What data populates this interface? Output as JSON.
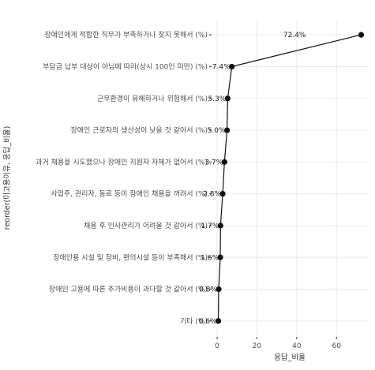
{
  "chart_data": {
    "type": "line",
    "orientation": "horizontal",
    "xlabel": "응답_비율",
    "ylabel": "reorder(미고용이유, 응답_비율)",
    "xlim": [
      0,
      73
    ],
    "xticks": [
      0,
      20,
      40,
      60
    ],
    "grid": true,
    "categories": [
      "장애인에게 적합한 직무가 부족하거나 찾지 못해서 (%)",
      "부담금 납부 대상이 아님에 따라(상시 100인 미만) (%)",
      "근무환경이 유해하거나 위험해서 (%)",
      "장애인 근로자의 생산성이 낮을 것 같아서 (%)",
      "과거 채용을 시도했으나 장애인 지원자 자체가 없어서 (%)",
      "사업주, 관리자, 동료 등이 장애인 채용을 꺼려서 (%)",
      "채용 후 인사관리가 어려울 것 같아서 (%)",
      "장애인용 시설 및 장비, 편의시설 등이 부족해서 (%)",
      "장애인 고용에 따른 추가비용이 과다할 것 같아서 (%)",
      "기타 (%)"
    ],
    "values": [
      72.4,
      7.4,
      5.3,
      5.0,
      3.7,
      2.8,
      1.7,
      1.6,
      0.8,
      0.6
    ],
    "data_labels": [
      "72.4%",
      "7.4%",
      "5.3%",
      "5.0%",
      "3.7%",
      "2.8%",
      "1.7%",
      "1.6%",
      "0.8%",
      "0.6%"
    ]
  }
}
